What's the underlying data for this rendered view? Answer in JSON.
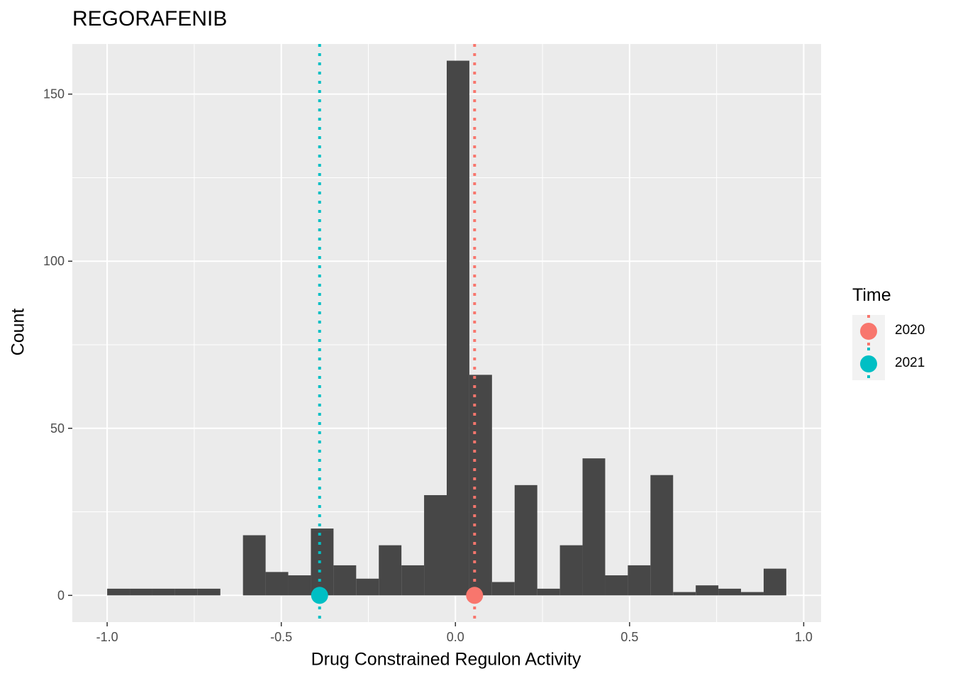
{
  "chart_data": {
    "type": "histogram",
    "title": "REGORAFENIB",
    "xlabel": "Drug Constrained Regulon Activity",
    "ylabel": "Count",
    "xlim": [
      -1.1,
      1.05
    ],
    "ylim": [
      -8,
      165
    ],
    "x_ticks": [
      -1.0,
      -0.5,
      0.0,
      0.5,
      1.0
    ],
    "x_tick_labels": [
      "-1.0",
      "-0.5",
      "0.0",
      "0.5",
      "1.0"
    ],
    "y_ticks": [
      0,
      50,
      100,
      150
    ],
    "y_tick_labels": [
      "0",
      "50",
      "100",
      "150"
    ],
    "grid": true,
    "bar_color": "#474747",
    "bins": [
      {
        "x0": -1.0,
        "x1": -0.935,
        "count": 2
      },
      {
        "x0": -0.935,
        "x1": -0.87,
        "count": 2
      },
      {
        "x0": -0.87,
        "x1": -0.805,
        "count": 2
      },
      {
        "x0": -0.805,
        "x1": -0.74,
        "count": 2
      },
      {
        "x0": -0.74,
        "x1": -0.675,
        "count": 2
      },
      {
        "x0": -0.61,
        "x1": -0.545,
        "count": 18
      },
      {
        "x0": -0.545,
        "x1": -0.48,
        "count": 7
      },
      {
        "x0": -0.48,
        "x1": -0.415,
        "count": 6
      },
      {
        "x0": -0.415,
        "x1": -0.35,
        "count": 20
      },
      {
        "x0": -0.35,
        "x1": -0.285,
        "count": 9
      },
      {
        "x0": -0.285,
        "x1": -0.22,
        "count": 5
      },
      {
        "x0": -0.22,
        "x1": -0.155,
        "count": 15
      },
      {
        "x0": -0.155,
        "x1": -0.09,
        "count": 9
      },
      {
        "x0": -0.09,
        "x1": -0.025,
        "count": 30
      },
      {
        "x0": -0.025,
        "x1": 0.04,
        "count": 160
      },
      {
        "x0": 0.04,
        "x1": 0.105,
        "count": 66
      },
      {
        "x0": 0.105,
        "x1": 0.17,
        "count": 4
      },
      {
        "x0": 0.17,
        "x1": 0.235,
        "count": 33
      },
      {
        "x0": 0.235,
        "x1": 0.3,
        "count": 2
      },
      {
        "x0": 0.3,
        "x1": 0.365,
        "count": 15
      },
      {
        "x0": 0.365,
        "x1": 0.43,
        "count": 41
      },
      {
        "x0": 0.43,
        "x1": 0.495,
        "count": 6
      },
      {
        "x0": 0.495,
        "x1": 0.56,
        "count": 9
      },
      {
        "x0": 0.56,
        "x1": 0.625,
        "count": 36
      },
      {
        "x0": 0.625,
        "x1": 0.69,
        "count": 1
      },
      {
        "x0": 0.69,
        "x1": 0.755,
        "count": 3
      },
      {
        "x0": 0.755,
        "x1": 0.82,
        "count": 2
      },
      {
        "x0": 0.82,
        "x1": 0.885,
        "count": 1
      },
      {
        "x0": 0.885,
        "x1": 0.95,
        "count": 8
      }
    ],
    "series": [
      {
        "name": "2020",
        "x": 0.055,
        "y": 0,
        "color": "#F8766D"
      },
      {
        "name": "2021",
        "x": -0.39,
        "y": 0,
        "color": "#00BFC4"
      }
    ],
    "legend": {
      "title": "Time",
      "placement": "right"
    }
  }
}
